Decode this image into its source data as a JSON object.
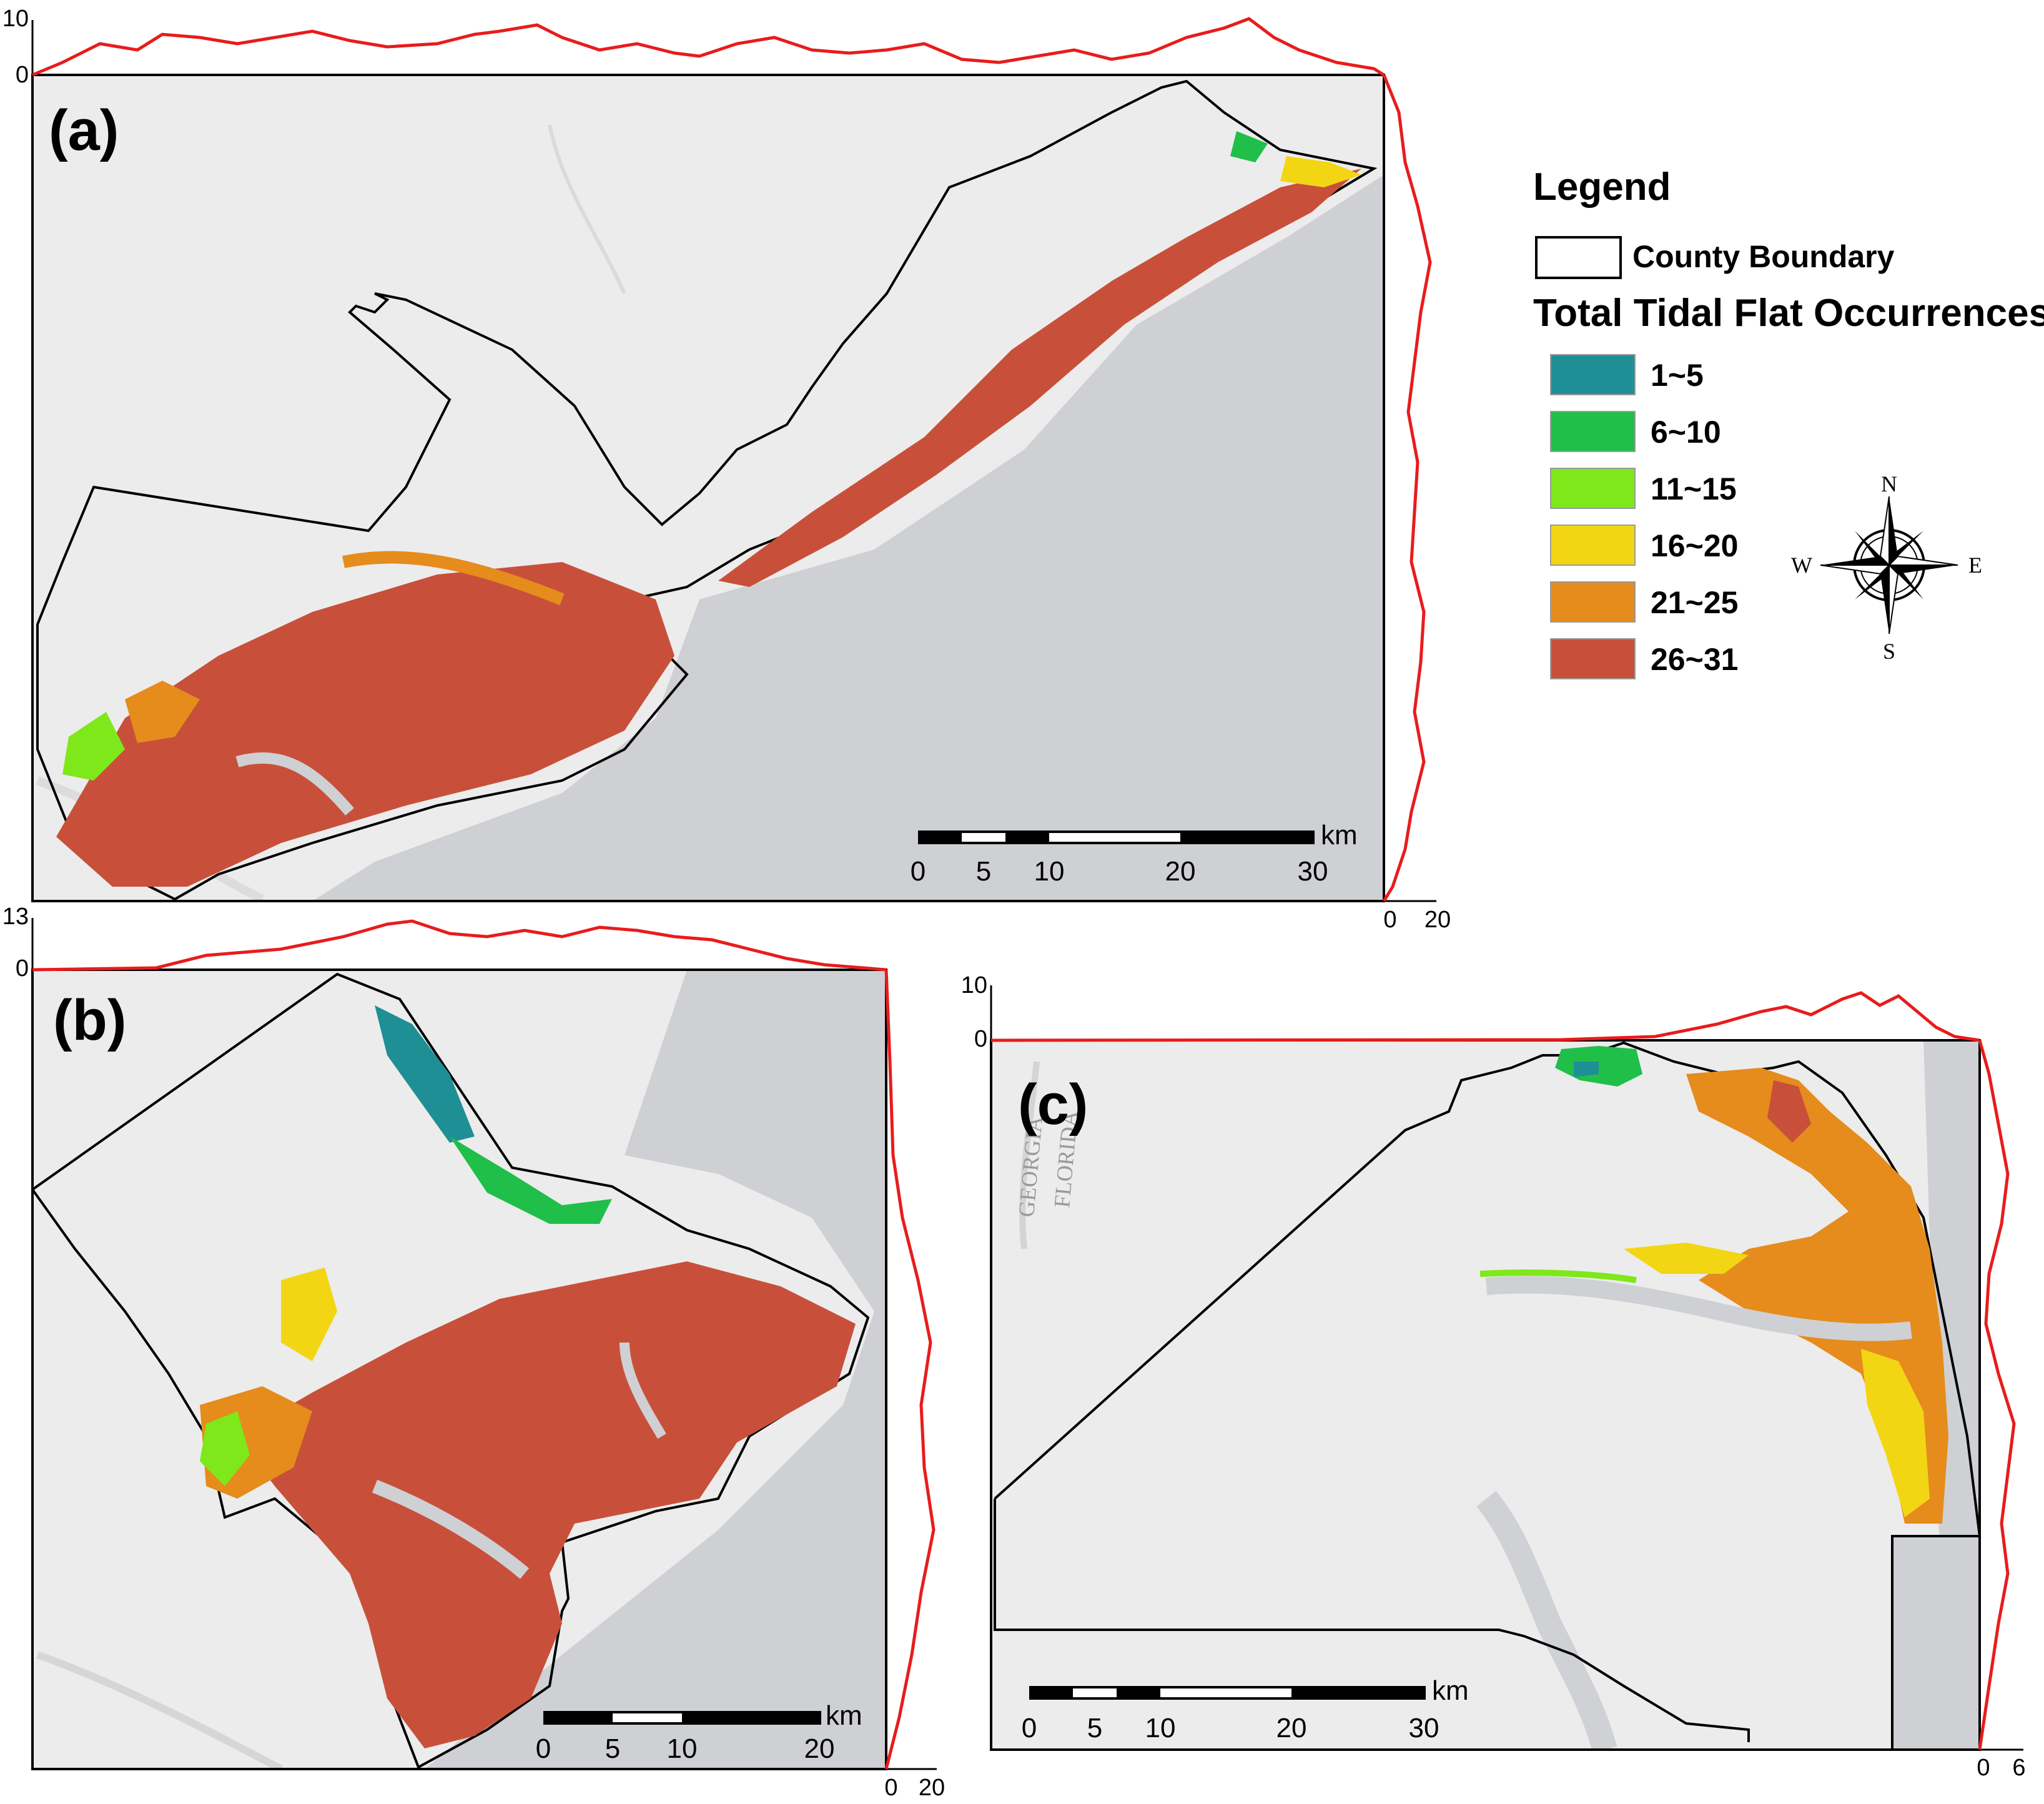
{
  "panels": [
    {
      "label": "(a)",
      "top_profile": {
        "max_label": "10",
        "min_label": "0"
      },
      "right_profile": {
        "min_label": "0",
        "max_label": "20"
      },
      "scalebar": {
        "unit": "km",
        "ticks": [
          "0",
          "5",
          "10",
          "20",
          "30"
        ]
      }
    },
    {
      "label": "(b)",
      "top_profile": {
        "max_label": "13",
        "min_label": "0"
      },
      "right_profile": {
        "min_label": "0",
        "max_label": "20"
      },
      "scalebar": {
        "unit": "km",
        "ticks": [
          "0",
          "5",
          "10",
          "20"
        ]
      }
    },
    {
      "label": "(c)",
      "top_profile": {
        "max_label": "10",
        "min_label": "0"
      },
      "right_profile": {
        "min_label": "0",
        "max_label": "6"
      },
      "scalebar": {
        "unit": "km",
        "ticks": [
          "0",
          "5",
          "10",
          "20",
          "30"
        ]
      },
      "map_text": [
        "GEORGIA",
        "FLORIDA"
      ]
    }
  ],
  "legend": {
    "title": "Legend",
    "boundary_label": "County Boundary",
    "occurrence_title": "Total Tidal Flat Occurrences",
    "classes": [
      {
        "label": "1~5",
        "color": "#1f8f96"
      },
      {
        "label": "6~10",
        "color": "#1fbf4a"
      },
      {
        "label": "11~15",
        "color": "#7ee81a"
      },
      {
        "label": "16~20",
        "color": "#f2d614"
      },
      {
        "label": "21~25",
        "color": "#e58c1c"
      },
      {
        "label": "26~31",
        "color": "#c8503a"
      }
    ]
  },
  "compass": {
    "n": "N",
    "s": "S",
    "e": "E",
    "w": "W"
  },
  "colors": {
    "land": "#ececec",
    "ocean": "#cfd0d4",
    "profile": "#e81c1c",
    "boundary": "#000000"
  }
}
